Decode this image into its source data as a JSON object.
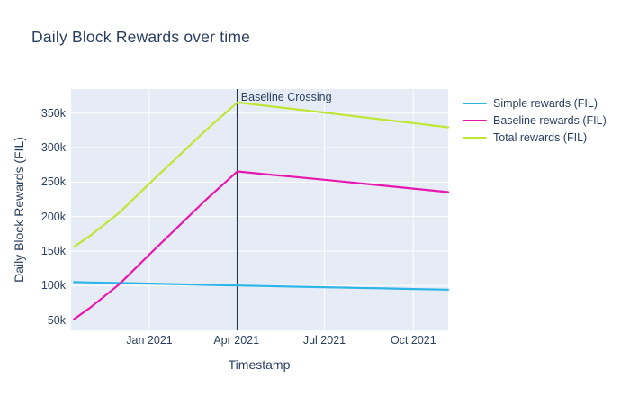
{
  "colors": {
    "page_background": "#ffffff",
    "plot_background": "#e5ecf6",
    "grid": "#ffffff",
    "text": "#2a3f5f"
  },
  "chart_data": {
    "type": "line",
    "title": "Daily Block Rewards over time",
    "xlabel": "Timestamp",
    "ylabel": "Daily Block Rewards (FIL)",
    "grid": true,
    "legend_position": "right",
    "x_range": [
      "2020-10-12",
      "2021-11-06"
    ],
    "y_range": [
      35000,
      385000
    ],
    "x_ticks": [
      {
        "date": "2021-01-01",
        "label": "Jan 2021"
      },
      {
        "date": "2021-04-01",
        "label": "Apr 2021"
      },
      {
        "date": "2021-07-01",
        "label": "Jul 2021"
      },
      {
        "date": "2021-10-01",
        "label": "Oct 2021"
      }
    ],
    "y_ticks": [
      {
        "value": 50000,
        "label": "50k"
      },
      {
        "value": 100000,
        "label": "100k"
      },
      {
        "value": 150000,
        "label": "150k"
      },
      {
        "value": 200000,
        "label": "200k"
      },
      {
        "value": 250000,
        "label": "250k"
      },
      {
        "value": 300000,
        "label": "300k"
      },
      {
        "value": 350000,
        "label": "350k"
      }
    ],
    "x": [
      "2020-10-15",
      "2020-11-01",
      "2020-12-01",
      "2021-01-01",
      "2021-02-01",
      "2021-03-01",
      "2021-04-02",
      "2021-05-01",
      "2021-06-01",
      "2021-07-01",
      "2021-08-01",
      "2021-09-01",
      "2021-10-01",
      "2021-11-06"
    ],
    "series": [
      {
        "name": "Simple rewards (FIL)",
        "color": "#2eb5e8",
        "values": [
          105000,
          104500,
          103700,
          102800,
          101900,
          101000,
          100100,
          99300,
          98400,
          97600,
          96700,
          95800,
          95000,
          94000
        ]
      },
      {
        "name": "Baseline rewards (FIL)",
        "color": "#e718b0",
        "values": [
          51000,
          68000,
          102000,
          145000,
          187000,
          225000,
          265500,
          261500,
          257400,
          253300,
          249000,
          244700,
          240600,
          235500
        ]
      },
      {
        "name": "Total rewards (FIL)",
        "color": "#bfe636",
        "values": [
          156000,
          172500,
          205700,
          247800,
          288900,
          326000,
          365600,
          360800,
          355800,
          350900,
          345700,
          340500,
          335600,
          329500
        ]
      }
    ],
    "annotation": {
      "label": "Baseline Crossing",
      "date": "2021-04-02",
      "line_color": "#26344a"
    }
  }
}
